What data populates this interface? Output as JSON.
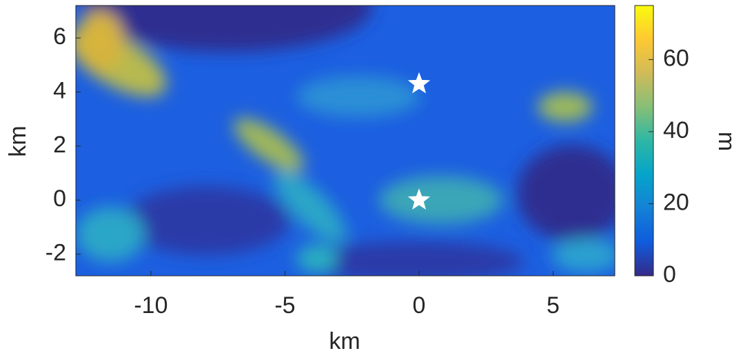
{
  "chart_data": {
    "type": "heatmap",
    "xlabel": "km",
    "ylabel": "km",
    "xlim": [
      -12.8,
      7.3
    ],
    "xticks": [
      -10,
      -5,
      0,
      5
    ],
    "ylim": [
      -2.8,
      7.2
    ],
    "yticks": [
      -2,
      0,
      2,
      4,
      6
    ],
    "colorbar": {
      "label": "m",
      "lim": [
        0,
        75
      ],
      "ticks": [
        0,
        20,
        40,
        60
      ],
      "colormap": [
        "#352a87",
        "#0f5cdd",
        "#1481d6",
        "#06a4ca",
        "#2eb7a4",
        "#87bf77",
        "#d1bb59",
        "#fec832",
        "#f9fb0e"
      ]
    },
    "series": [
      {
        "type": "scatter",
        "marker": "star",
        "color": "#ffffff",
        "x": [
          0,
          0
        ],
        "values": [
          4.3,
          0
        ]
      }
    ]
  }
}
